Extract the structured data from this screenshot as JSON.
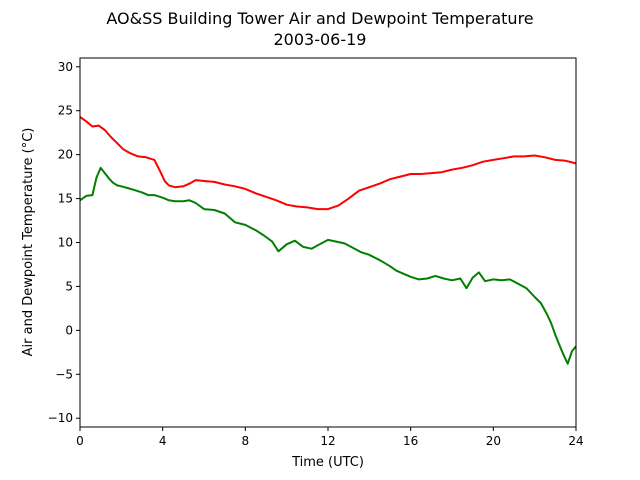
{
  "chart_data": {
    "type": "line",
    "title": "AO&SS Building Tower Air and Dewpoint Temperature",
    "subtitle": "2003-06-19",
    "xlabel": "Time (UTC)",
    "ylabel": "Air and Dewpoint Temperature (°C)",
    "xlim": [
      0,
      24
    ],
    "ylim": [
      -11,
      31
    ],
    "xticks": [
      0,
      4,
      8,
      12,
      16,
      20,
      24
    ],
    "yticks": [
      -10,
      -5,
      0,
      5,
      10,
      15,
      20,
      25,
      30
    ],
    "grid": false,
    "series": [
      {
        "color": "#ff0000",
        "x": [
          0,
          0.3,
          0.6,
          0.9,
          1.2,
          1.5,
          1.8,
          2.1,
          2.4,
          2.8,
          3.2,
          3.6,
          3.9,
          4.1,
          4.3,
          4.6,
          5.0,
          5.3,
          5.6,
          6.0,
          6.5,
          7.0,
          7.5,
          8.0,
          8.5,
          9.0,
          9.5,
          10.0,
          10.5,
          11.0,
          11.5,
          12.0,
          12.5,
          13.0,
          13.5,
          14.0,
          14.5,
          15.0,
          15.5,
          16.0,
          16.5,
          17.0,
          17.5,
          18.0,
          18.5,
          19.0,
          19.5,
          20.0,
          20.5,
          21.0,
          21.5,
          22.0,
          22.5,
          23.0,
          23.5,
          24.0
        ],
        "y": [
          24.3,
          23.8,
          23.2,
          23.3,
          22.8,
          22.0,
          21.3,
          20.6,
          20.2,
          19.8,
          19.7,
          19.4,
          18.0,
          17.0,
          16.5,
          16.3,
          16.4,
          16.7,
          17.1,
          17.0,
          16.9,
          16.6,
          16.4,
          16.1,
          15.6,
          15.2,
          14.8,
          14.3,
          14.1,
          14.0,
          13.8,
          13.8,
          14.2,
          15.0,
          15.9,
          16.3,
          16.7,
          17.2,
          17.5,
          17.8,
          17.8,
          17.9,
          18.0,
          18.3,
          18.5,
          18.8,
          19.2,
          19.4,
          19.6,
          19.8,
          19.8,
          19.9,
          19.7,
          19.4,
          19.3,
          19.0
        ]
      },
      {
        "color": "#008000",
        "x": [
          0,
          0.3,
          0.6,
          0.8,
          1.0,
          1.2,
          1.4,
          1.6,
          1.8,
          2.0,
          2.3,
          2.6,
          3.0,
          3.3,
          3.6,
          4.0,
          4.3,
          4.6,
          5.0,
          5.3,
          5.6,
          6.0,
          6.5,
          7.0,
          7.5,
          8.0,
          8.5,
          8.9,
          9.3,
          9.6,
          10.0,
          10.4,
          10.8,
          11.2,
          11.6,
          12.0,
          12.4,
          12.8,
          13.2,
          13.6,
          14.0,
          14.5,
          15.0,
          15.3,
          15.6,
          16.0,
          16.4,
          16.8,
          17.2,
          17.6,
          18.0,
          18.4,
          18.7,
          19.0,
          19.3,
          19.6,
          20.0,
          20.4,
          20.8,
          21.2,
          21.6,
          22.0,
          22.3,
          22.6,
          22.8,
          23.0,
          23.2,
          23.4,
          23.6,
          23.8,
          24.0
        ],
        "y": [
          14.8,
          15.3,
          15.4,
          17.4,
          18.5,
          17.9,
          17.3,
          16.8,
          16.5,
          16.4,
          16.2,
          16.0,
          15.7,
          15.4,
          15.4,
          15.1,
          14.8,
          14.7,
          14.7,
          14.8,
          14.5,
          13.8,
          13.7,
          13.3,
          12.3,
          12.0,
          11.4,
          10.8,
          10.1,
          9.0,
          9.8,
          10.2,
          9.5,
          9.3,
          9.8,
          10.3,
          10.1,
          9.9,
          9.4,
          8.9,
          8.6,
          8.0,
          7.3,
          6.8,
          6.5,
          6.1,
          5.8,
          5.9,
          6.2,
          5.9,
          5.7,
          5.9,
          4.8,
          6.0,
          6.6,
          5.6,
          5.8,
          5.7,
          5.8,
          5.3,
          4.8,
          3.8,
          3.1,
          1.8,
          0.8,
          -0.5,
          -1.7,
          -2.8,
          -3.8,
          -2.4,
          -1.8
        ]
      }
    ]
  }
}
